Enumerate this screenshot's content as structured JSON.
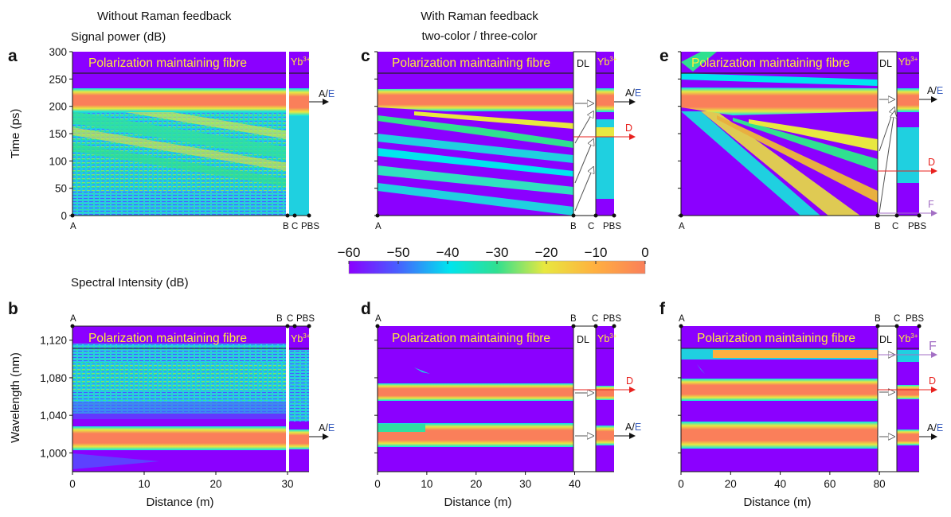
{
  "header": {
    "left_title": "Without Raman feedback",
    "right_title": "With Raman feedback",
    "right_subtitle": "two-color / three-color",
    "top_quantity": "Signal power (dB)",
    "bottom_quantity": "Spectral Intensity (dB)"
  },
  "colors": {
    "background": "#8b00ff",
    "cmap": [
      "#8b00ff",
      "#4a5cff",
      "#00e5ee",
      "#30e090",
      "#e8e840",
      "#ffb040",
      "#fa7f5a"
    ],
    "labelD": "#e8211e",
    "labelE": "#3b5fbf",
    "labelF": "#a36fc4",
    "band_text": "#ffeb3b"
  },
  "colorbar": {
    "ticks": [
      "−60",
      "−50",
      "−40",
      "−30",
      "−20",
      "−10",
      "0"
    ],
    "range": [
      -60,
      0
    ]
  },
  "texts": {
    "pm_fibre": "Polarization maintaining fibre",
    "yb": "Yb",
    "yb_sup": "3+",
    "dl": "DL",
    "A": "A",
    "B": "B",
    "C": "C",
    "PBS": "PBS",
    "AE_A": "A/",
    "AE_E": "E",
    "D": "D",
    "F": "F"
  },
  "chart_data": [
    {
      "panel": "a",
      "type": "heatmap",
      "title": "Without Raman feedback",
      "ylabel": "Time (ps)",
      "xlabel": "",
      "yticks": [
        "0",
        "50",
        "100",
        "150",
        "200",
        "250",
        "300"
      ],
      "ylim": [
        0,
        300
      ],
      "xlim": [
        0,
        33
      ],
      "segments": [
        "Polarization maintaining fibre",
        "Yb3+"
      ],
      "outputs": [
        "A/E"
      ]
    },
    {
      "panel": "b",
      "type": "heatmap",
      "ylabel": "Wavelength (nm)",
      "xlabel": "Distance (m)",
      "xticks": [
        "0",
        "10",
        "20",
        "30"
      ],
      "yticks": [
        "1,000",
        "1,040",
        "1,080",
        "1,120"
      ],
      "ylim": [
        980,
        1135
      ],
      "xlim": [
        0,
        33
      ],
      "bands_nm": [
        1010,
        1060
      ],
      "outputs": [
        "A/E"
      ]
    },
    {
      "panel": "c",
      "type": "heatmap",
      "title": "two-color",
      "ylim": [
        0,
        300
      ],
      "xlim": [
        0,
        48
      ],
      "segments": [
        "Polarization maintaining fibre",
        "DL",
        "Yb3+"
      ],
      "outputs": [
        "A/E",
        "D"
      ]
    },
    {
      "panel": "d",
      "type": "heatmap",
      "xlabel": "Distance (m)",
      "xticks": [
        "0",
        "10",
        "20",
        "30",
        "40"
      ],
      "ylim": [
        980,
        1135
      ],
      "xlim": [
        0,
        48
      ],
      "bands_nm": [
        1010,
        1058
      ],
      "outputs": [
        "D",
        "A/E"
      ]
    },
    {
      "panel": "e",
      "type": "heatmap",
      "title": "three-color",
      "ylim": [
        0,
        300
      ],
      "xlim": [
        0,
        96
      ],
      "segments": [
        "Polarization maintaining fibre",
        "DL",
        "Yb3+"
      ],
      "outputs": [
        "A/E",
        "D",
        "F"
      ]
    },
    {
      "panel": "f",
      "type": "heatmap",
      "xlabel": "Distance (m)",
      "xticks": [
        "0",
        "20",
        "40",
        "60",
        "80"
      ],
      "ylim": [
        980,
        1135
      ],
      "xlim": [
        0,
        96
      ],
      "bands_nm": [
        1010,
        1055,
        1115
      ],
      "outputs": [
        "F",
        "D",
        "A/E"
      ]
    }
  ]
}
